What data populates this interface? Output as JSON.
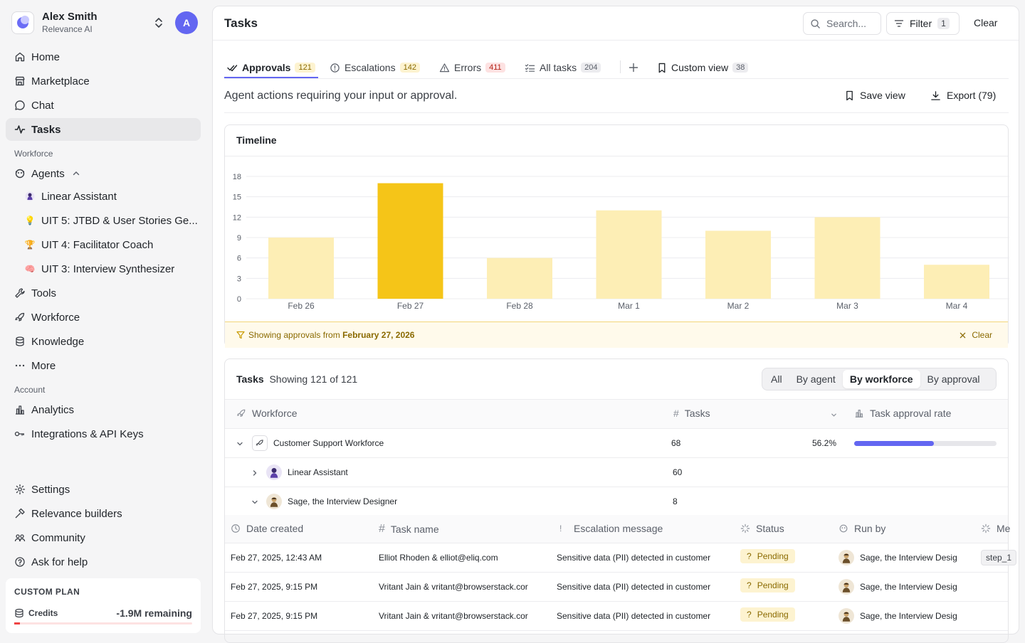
{
  "profile": {
    "name": "Alex Smith",
    "org": "Relevance AI",
    "avatar_letter": "A"
  },
  "nav": {
    "home": "Home",
    "marketplace": "Marketplace",
    "chat": "Chat",
    "tasks": "Tasks",
    "section_workforce": "Workforce",
    "agents": "Agents",
    "agent_items": [
      {
        "label": "Linear Assistant",
        "icon": "robot-avatar"
      },
      {
        "label": "UIT 5: JTBD & User Stories Ge...",
        "icon": "lightbulb-emoji",
        "emoji": "💡"
      },
      {
        "label": "UIT 4: Facilitator Coach",
        "icon": "trophy-emoji",
        "emoji": "🏆"
      },
      {
        "label": "UIT 3: Interview Synthesizer",
        "icon": "brain-emoji",
        "emoji": "🧠"
      }
    ],
    "tools": "Tools",
    "workforce": "Workforce",
    "knowledge": "Knowledge",
    "more": "More",
    "section_account": "Account",
    "analytics": "Analytics",
    "integrations": "Integrations & API Keys",
    "settings": "Settings",
    "relevance_builders": "Relevance builders",
    "community": "Community",
    "ask_help": "Ask for help"
  },
  "plan": {
    "title": "CUSTOM PLAN",
    "credits_label": "Credits",
    "credits_value": "-1.9M remaining",
    "credits_fraction": 0.03
  },
  "header": {
    "title": "Tasks",
    "search_placeholder": "Search...",
    "filter_label": "Filter",
    "filter_count": "1",
    "clear_label": "Clear"
  },
  "tabs": [
    {
      "label": "Approvals",
      "count": "121"
    },
    {
      "label": "Escalations",
      "count": "142"
    },
    {
      "label": "Errors",
      "count": "411"
    },
    {
      "label": "All tasks",
      "count": "204"
    },
    {
      "label": "Custom view",
      "count": "38"
    }
  ],
  "subheader": {
    "description": "Agent actions requiring your input or approval.",
    "save_view": "Save view",
    "export": "Export (79)"
  },
  "timeline": {
    "title": "Timeline",
    "filter_prefix": "Showing approvals from",
    "filter_date": "February 27, 2026",
    "filter_clear": "Clear"
  },
  "chart_data": {
    "type": "bar",
    "categories": [
      "Feb 26",
      "Feb 27",
      "Feb 28",
      "Mar 1",
      "Mar 2",
      "Mar 3",
      "Mar 4"
    ],
    "values": [
      9,
      17,
      6,
      13,
      10,
      12,
      5
    ],
    "highlighted": "Feb 27",
    "yticks": [
      0,
      3,
      6,
      9,
      12,
      15,
      18
    ],
    "ylim": [
      0,
      18
    ],
    "grid": true,
    "colors": {
      "highlight": "#f5c518",
      "normal": "#fdeeb5"
    }
  },
  "tasks_card": {
    "title": "Tasks",
    "showing": "Showing 121 of 121",
    "segments": [
      "All",
      "By agent",
      "By workforce",
      "By approval"
    ],
    "active_segment": "By workforce",
    "group_columns": {
      "workforce": "Workforce",
      "tasks": "Tasks",
      "rate": "Task approval rate"
    },
    "groups": [
      {
        "name": "Customer Support Workforce",
        "tasks": "68",
        "rate": "56.2%",
        "rate_fraction": 0.562
      },
      {
        "name": "Linear Assistant",
        "tasks": "60"
      },
      {
        "name": "Sage, the Interview Designer",
        "tasks": "8"
      }
    ],
    "columns": {
      "date": "Date created",
      "task": "Task name",
      "escalation": "Escalation message",
      "status": "Status",
      "run_by": "Run by",
      "more": "Me"
    },
    "rows": [
      {
        "date": "Feb 27, 2025, 12:43 AM",
        "task": "Elliot Rhoden & elliot@eliq.com",
        "escalation": "Sensitive data (PII) detected in customer",
        "status": "Pending",
        "run_by": "Sage, the Interview Desig",
        "step": "step_1"
      },
      {
        "date": "Feb 27, 2025, 9:15 PM",
        "task": "Vritant Jain & vritant@browserstack.cor",
        "escalation": "Sensitive data (PII) detected in customer",
        "status": "Pending",
        "run_by": "Sage, the Interview Desig"
      },
      {
        "date": "Feb 27, 2025, 9:15 PM",
        "task": "Vritant Jain & vritant@browserstack.cor",
        "escalation": "Sensitive data (PII) detected in customer",
        "status": "Pending",
        "run_by": "Sage, the Interview Desig"
      }
    ]
  }
}
